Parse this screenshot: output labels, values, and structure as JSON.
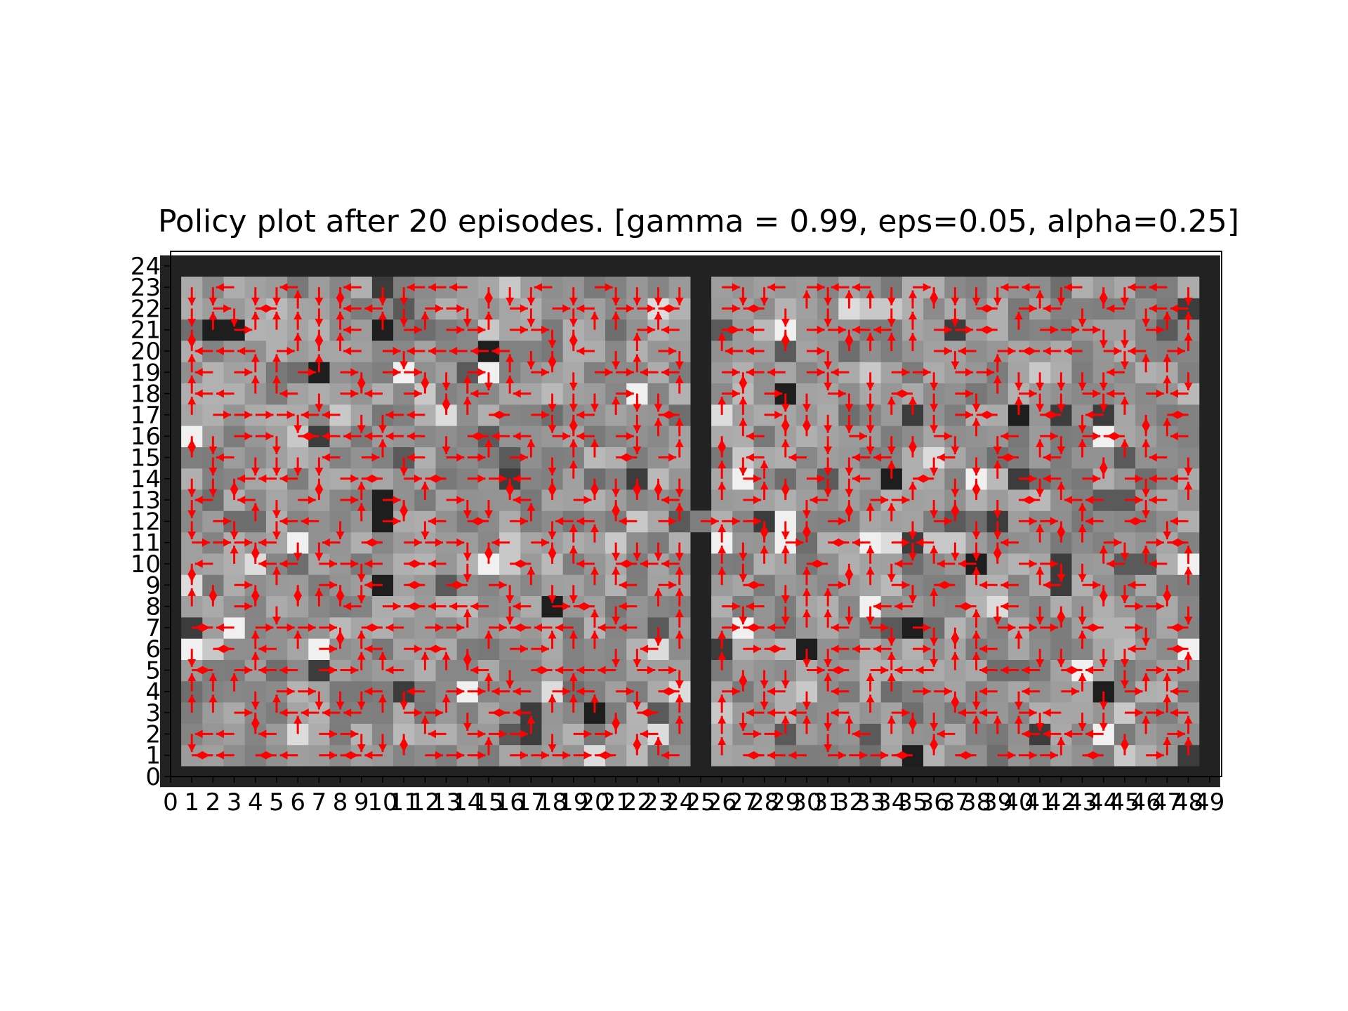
{
  "chart_data": {
    "type": "heatmap",
    "title": "Policy plot after 20 episodes. [gamma = 0.99, eps=0.05, alpha=0.25]",
    "xlabel": "",
    "ylabel": "",
    "xlim": [
      0,
      49
    ],
    "ylim": [
      0,
      24
    ],
    "x_ticks": [
      "0",
      "1",
      "2",
      "3",
      "4",
      "5",
      "6",
      "7",
      "8",
      "9",
      "10",
      "11",
      "12",
      "13",
      "14",
      "15",
      "16",
      "17",
      "18",
      "19",
      "20",
      "21",
      "22",
      "23",
      "24",
      "25",
      "26",
      "27",
      "28",
      "29",
      "30",
      "31",
      "32",
      "33",
      "34",
      "35",
      "36",
      "37",
      "38",
      "39",
      "40",
      "41",
      "42",
      "43",
      "44",
      "45",
      "46",
      "47",
      "48",
      "49"
    ],
    "y_ticks": [
      "0",
      "1",
      "2",
      "3",
      "4",
      "5",
      "6",
      "7",
      "8",
      "9",
      "10",
      "11",
      "12",
      "13",
      "14",
      "15",
      "16",
      "17",
      "18",
      "19",
      "20",
      "21",
      "22",
      "23",
      "24"
    ],
    "grid": false,
    "colormap": "grayscale",
    "arrow_color": "#ff0000",
    "wall_color": "#222222",
    "layout": "two rooms (columns 1-24 and 26-48, rows 1-23) joined by a doorway at row 12, columns 24-26; outer border and column 25 are walls",
    "policy_arrows": "one red arrow per open cell showing the greedy action (up/down/left/right)"
  }
}
